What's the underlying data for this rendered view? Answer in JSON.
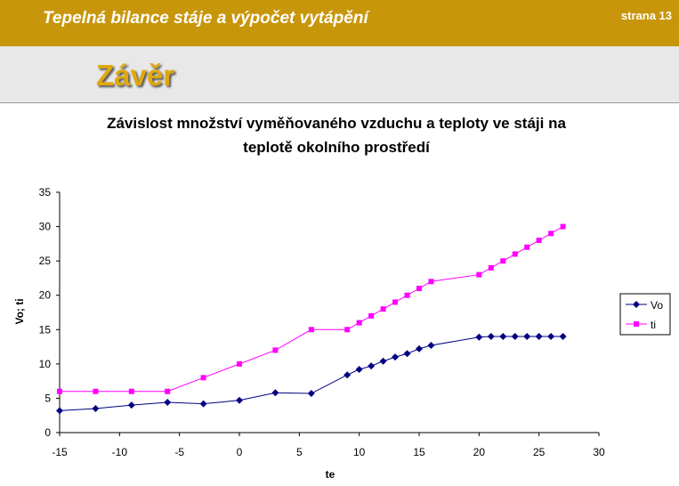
{
  "slide": {
    "header_title": "Tepelná bilance stáje a výpočet vytápění",
    "page_label": "strana 13",
    "heading": "Závěr"
  },
  "chart_data": {
    "type": "line",
    "title": "Závislost množství vyměňovaného vzduchu a teploty ve stáji na",
    "title_line2": "teplotě okolního prostředí",
    "xlabel": "te",
    "ylabel": "Vo; ti",
    "x": [
      -15,
      -12,
      -9,
      -6,
      -3,
      0,
      3,
      6,
      9,
      10,
      11,
      12,
      13,
      14,
      15,
      16,
      20,
      21,
      22,
      23,
      24,
      25,
      26,
      27
    ],
    "series": [
      {
        "name": "Vo",
        "color": "#000080",
        "marker": "diamond",
        "values": [
          3.2,
          3.5,
          4.0,
          4.4,
          4.2,
          4.7,
          5.8,
          5.7,
          8.4,
          9.2,
          9.7,
          10.4,
          11.0,
          11.5,
          12.2,
          12.7,
          13.9,
          14,
          14,
          14,
          14,
          14,
          14,
          14
        ]
      },
      {
        "name": "ti",
        "color": "#ff00ff",
        "marker": "square",
        "values": [
          6,
          6,
          6,
          6,
          8,
          10,
          12,
          15,
          15,
          16,
          17,
          18,
          19,
          20,
          21,
          22,
          23,
          24,
          25,
          26,
          27,
          28,
          29,
          30
        ]
      }
    ],
    "xlim": [
      -15,
      30
    ],
    "xticks": [
      -15,
      -10,
      -5,
      0,
      5,
      10,
      15,
      20,
      25,
      30
    ],
    "ylim": [
      0,
      35
    ],
    "yticks": [
      0,
      5,
      10,
      15,
      20,
      25,
      30,
      35
    ],
    "grid": false,
    "legend": "right"
  }
}
